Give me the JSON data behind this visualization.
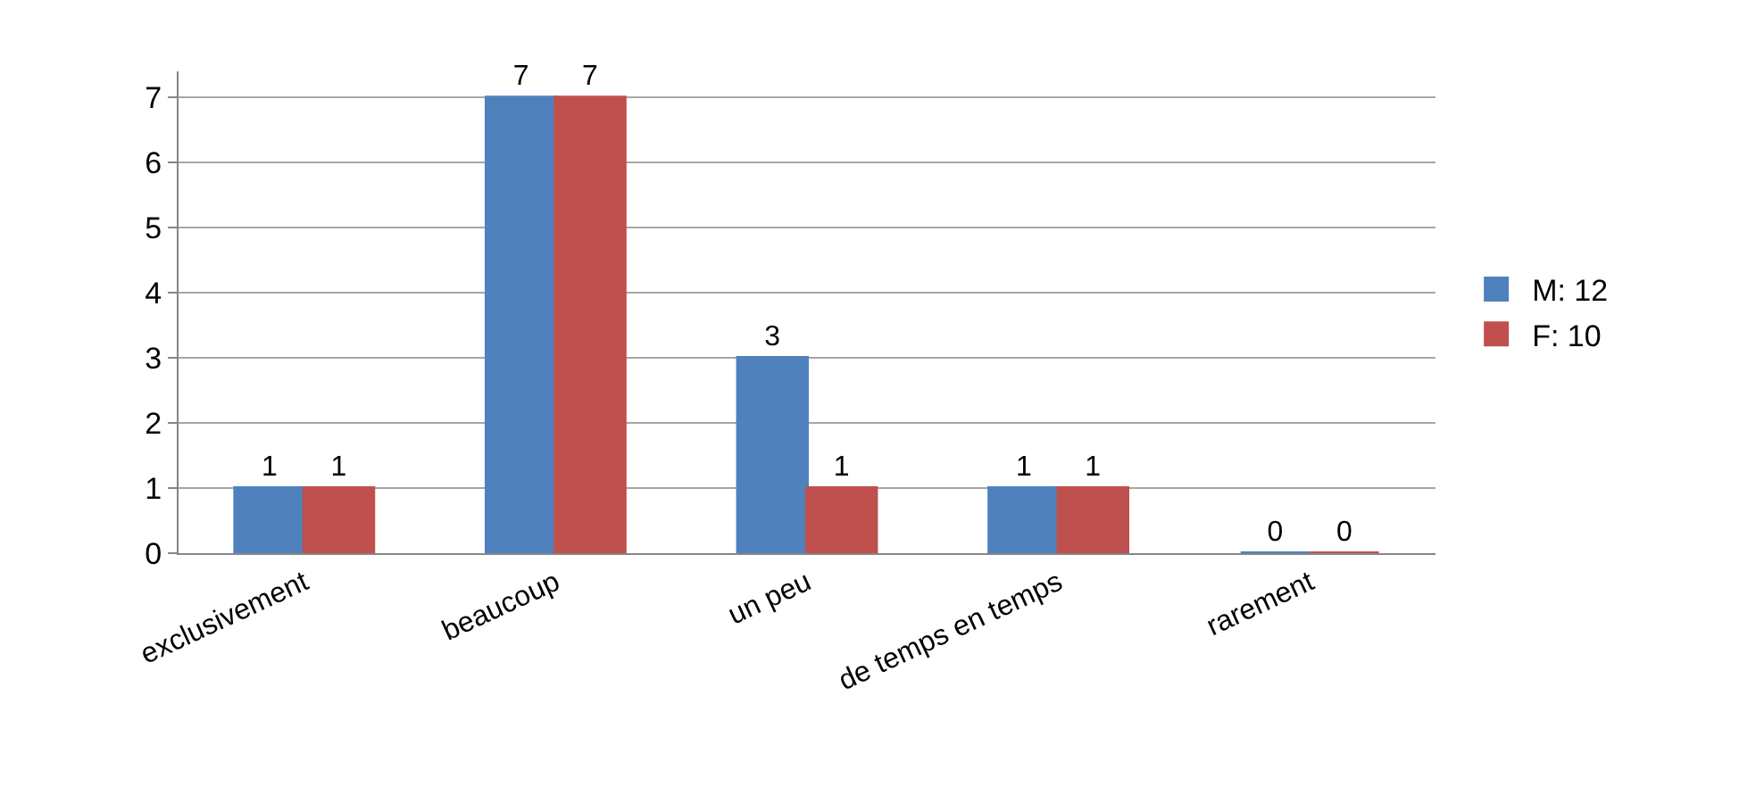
{
  "chart_data": {
    "type": "bar",
    "categories": [
      "exclusivement",
      "beaucoup",
      "un peu",
      "de temps en temps",
      "rarement"
    ],
    "series": [
      {
        "name": "M: 12",
        "color": "#4f81bd",
        "values": [
          1,
          7,
          3,
          1,
          0
        ]
      },
      {
        "name": "F: 10",
        "color": "#c0504d",
        "values": [
          1,
          7,
          1,
          1,
          0
        ]
      }
    ],
    "ylim": [
      0,
      7.4
    ],
    "yticks": [
      0,
      1,
      2,
      3,
      4,
      5,
      6,
      7
    ],
    "grid": "y",
    "legend": "right",
    "data_labels": true
  }
}
